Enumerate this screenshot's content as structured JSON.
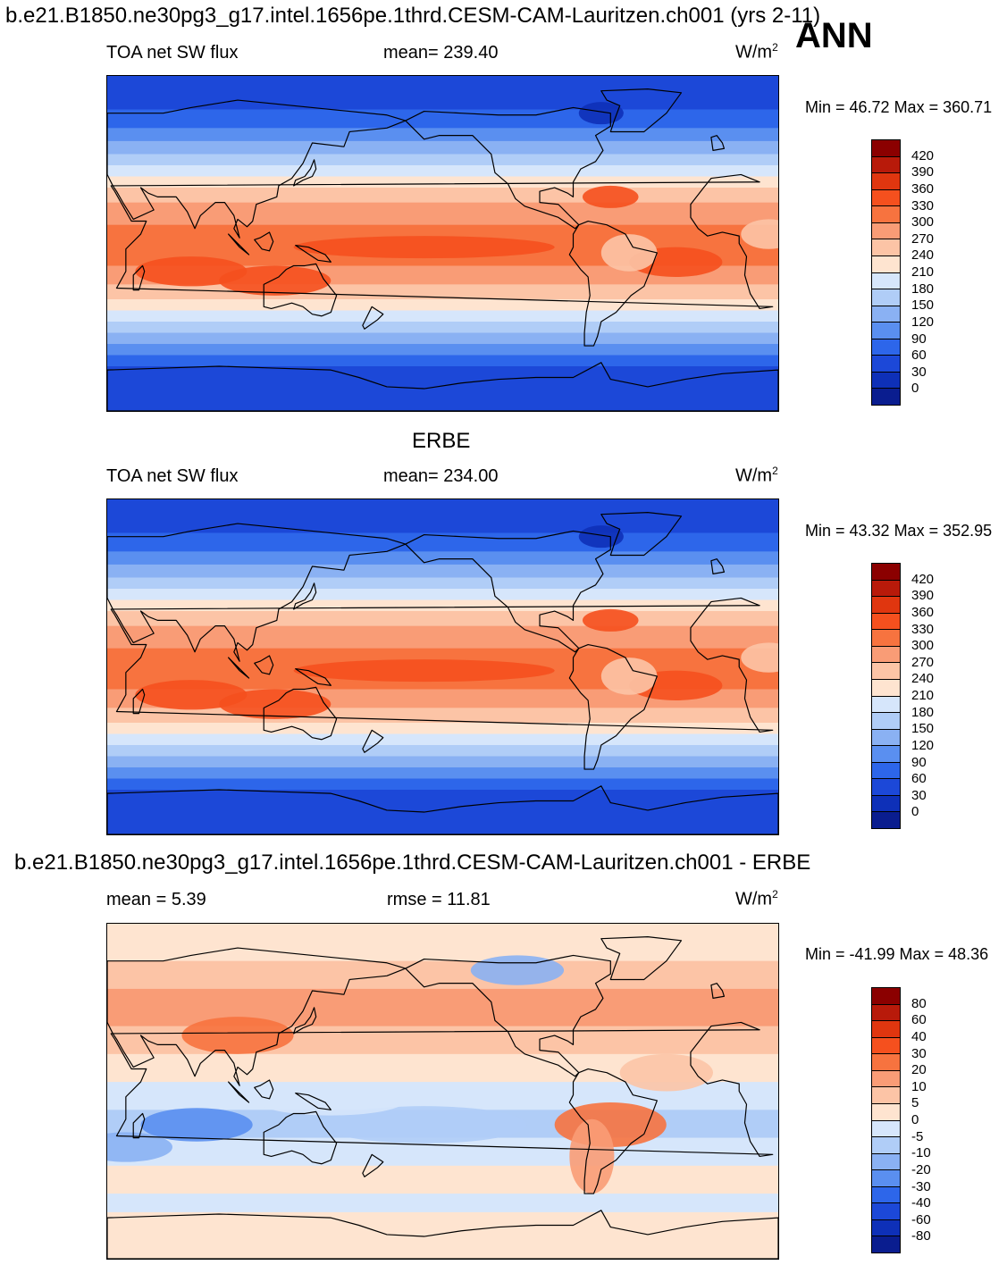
{
  "header": {
    "title": "b.e21.B1850.ne30pg3_g17.intel.1656pe.1thrd.CESM-CAM-Lauritzen.ch001 (yrs 2-11)",
    "season": "ANN"
  },
  "panels": [
    {
      "id": "model",
      "heading": "",
      "left_label": "TOA net SW flux",
      "center_label": "mean= 239.40",
      "units_base": "W/m",
      "units_sup": "2",
      "minmax": "Min =  46.72 Max = 360.71",
      "colorbar": {
        "labels": [
          "420",
          "390",
          "360",
          "330",
          "300",
          "270",
          "240",
          "210",
          "180",
          "150",
          "120",
          "90",
          "60",
          "30",
          "0"
        ],
        "colors": [
          "#8b0000",
          "#b81a0a",
          "#e0360f",
          "#f5501e",
          "#f7733f",
          "#f99c76",
          "#fcc4a6",
          "#fee4d0",
          "#d6e6fb",
          "#b0cdf7",
          "#8ab1f3",
          "#5a8ff0",
          "#2d66ea",
          "#1c48d8",
          "#0e30b8",
          "#0a1d8f"
        ]
      },
      "map": {
        "palette": "absolute",
        "bands": [
          {
            "lat_top": 90,
            "lat_bottom": 72,
            "color": "#1c48d8"
          },
          {
            "lat_top": 72,
            "lat_bottom": 62,
            "color": "#2d66ea"
          },
          {
            "lat_top": 62,
            "lat_bottom": 55,
            "color": "#5a8ff0"
          },
          {
            "lat_top": 55,
            "lat_bottom": 48,
            "color": "#8ab1f3"
          },
          {
            "lat_top": 48,
            "lat_bottom": 42,
            "color": "#b0cdf7"
          },
          {
            "lat_top": 42,
            "lat_bottom": 36,
            "color": "#d6e6fb"
          },
          {
            "lat_top": 36,
            "lat_bottom": 30,
            "color": "#fee4d0"
          },
          {
            "lat_top": 30,
            "lat_bottom": 22,
            "color": "#fcc4a6"
          },
          {
            "lat_top": 22,
            "lat_bottom": 10,
            "color": "#f99c76"
          },
          {
            "lat_top": 10,
            "lat_bottom": -12,
            "color": "#f7733f"
          },
          {
            "lat_top": -12,
            "lat_bottom": -22,
            "color": "#f99c76"
          },
          {
            "lat_top": -22,
            "lat_bottom": -30,
            "color": "#fcc4a6"
          },
          {
            "lat_top": -30,
            "lat_bottom": -36,
            "color": "#fee4d0"
          },
          {
            "lat_top": -36,
            "lat_bottom": -42,
            "color": "#d6e6fb"
          },
          {
            "lat_top": -42,
            "lat_bottom": -48,
            "color": "#b0cdf7"
          },
          {
            "lat_top": -48,
            "lat_bottom": -54,
            "color": "#8ab1f3"
          },
          {
            "lat_top": -54,
            "lat_bottom": -60,
            "color": "#5a8ff0"
          },
          {
            "lat_top": -60,
            "lat_bottom": -66,
            "color": "#2d66ea"
          },
          {
            "lat_top": -66,
            "lat_bottom": -90,
            "color": "#1c48d8"
          }
        ]
      }
    },
    {
      "id": "obs",
      "heading": "ERBE",
      "left_label": "TOA net SW flux",
      "center_label": "mean= 234.00",
      "units_base": "W/m",
      "units_sup": "2",
      "minmax": "Min =  43.32 Max = 352.95",
      "colorbar": {
        "labels": [
          "420",
          "390",
          "360",
          "330",
          "300",
          "270",
          "240",
          "210",
          "180",
          "150",
          "120",
          "90",
          "60",
          "30",
          "0"
        ],
        "colors": [
          "#8b0000",
          "#b81a0a",
          "#e0360f",
          "#f5501e",
          "#f7733f",
          "#f99c76",
          "#fcc4a6",
          "#fee4d0",
          "#d6e6fb",
          "#b0cdf7",
          "#8ab1f3",
          "#5a8ff0",
          "#2d66ea",
          "#1c48d8",
          "#0e30b8",
          "#0a1d8f"
        ]
      },
      "map": {
        "palette": "absolute",
        "bands": [
          {
            "lat_top": 90,
            "lat_bottom": 72,
            "color": "#1c48d8"
          },
          {
            "lat_top": 72,
            "lat_bottom": 62,
            "color": "#2d66ea"
          },
          {
            "lat_top": 62,
            "lat_bottom": 55,
            "color": "#5a8ff0"
          },
          {
            "lat_top": 55,
            "lat_bottom": 48,
            "color": "#8ab1f3"
          },
          {
            "lat_top": 48,
            "lat_bottom": 42,
            "color": "#b0cdf7"
          },
          {
            "lat_top": 42,
            "lat_bottom": 36,
            "color": "#d6e6fb"
          },
          {
            "lat_top": 36,
            "lat_bottom": 30,
            "color": "#fee4d0"
          },
          {
            "lat_top": 30,
            "lat_bottom": 22,
            "color": "#fcc4a6"
          },
          {
            "lat_top": 22,
            "lat_bottom": 10,
            "color": "#f99c76"
          },
          {
            "lat_top": 10,
            "lat_bottom": -12,
            "color": "#f7733f"
          },
          {
            "lat_top": -12,
            "lat_bottom": -22,
            "color": "#f99c76"
          },
          {
            "lat_top": -22,
            "lat_bottom": -30,
            "color": "#fcc4a6"
          },
          {
            "lat_top": -30,
            "lat_bottom": -36,
            "color": "#fee4d0"
          },
          {
            "lat_top": -36,
            "lat_bottom": -42,
            "color": "#d6e6fb"
          },
          {
            "lat_top": -42,
            "lat_bottom": -48,
            "color": "#b0cdf7"
          },
          {
            "lat_top": -48,
            "lat_bottom": -54,
            "color": "#8ab1f3"
          },
          {
            "lat_top": -54,
            "lat_bottom": -60,
            "color": "#5a8ff0"
          },
          {
            "lat_top": -60,
            "lat_bottom": -66,
            "color": "#2d66ea"
          },
          {
            "lat_top": -66,
            "lat_bottom": -90,
            "color": "#1c48d8"
          }
        ]
      }
    },
    {
      "id": "diff",
      "heading": "b.e21.B1850.ne30pg3_g17.intel.1656pe.1thrd.CESM-CAM-Lauritzen.ch001 - ERBE",
      "left_label": "mean =    5.39",
      "center_label": "rmse =  11.81",
      "units_base": "W/m",
      "units_sup": "2",
      "minmax": "Min = -41.99 Max =  48.36",
      "colorbar": {
        "labels": [
          "80",
          "60",
          "40",
          "30",
          "20",
          "10",
          "5",
          "0",
          "-5",
          "-10",
          "-20",
          "-30",
          "-40",
          "-60",
          "-80"
        ],
        "colors": [
          "#8b0000",
          "#b81a0a",
          "#e0360f",
          "#f5501e",
          "#f7733f",
          "#f99c76",
          "#fcc4a6",
          "#fee4d0",
          "#d6e6fb",
          "#b0cdf7",
          "#8ab1f3",
          "#5a8ff0",
          "#2d66ea",
          "#1c48d8",
          "#0e30b8",
          "#0a1d8f"
        ]
      },
      "map": {
        "palette": "difference",
        "bands": [
          {
            "lat_top": 90,
            "lat_bottom": 70,
            "color": "#fee4d0"
          },
          {
            "lat_top": 70,
            "lat_bottom": 55,
            "color": "#fcc4a6"
          },
          {
            "lat_top": 55,
            "lat_bottom": 35,
            "color": "#f99c76"
          },
          {
            "lat_top": 35,
            "lat_bottom": 20,
            "color": "#fcc4a6"
          },
          {
            "lat_top": 20,
            "lat_bottom": 5,
            "color": "#fee4d0"
          },
          {
            "lat_top": 5,
            "lat_bottom": -10,
            "color": "#d6e6fb"
          },
          {
            "lat_top": -10,
            "lat_bottom": -25,
            "color": "#b0cdf7"
          },
          {
            "lat_top": -25,
            "lat_bottom": -40,
            "color": "#d6e6fb"
          },
          {
            "lat_top": -40,
            "lat_bottom": -55,
            "color": "#fee4d0"
          },
          {
            "lat_top": -55,
            "lat_bottom": -65,
            "color": "#d6e6fb"
          },
          {
            "lat_top": -65,
            "lat_bottom": -90,
            "color": "#fee4d0"
          }
        ]
      }
    }
  ]
}
